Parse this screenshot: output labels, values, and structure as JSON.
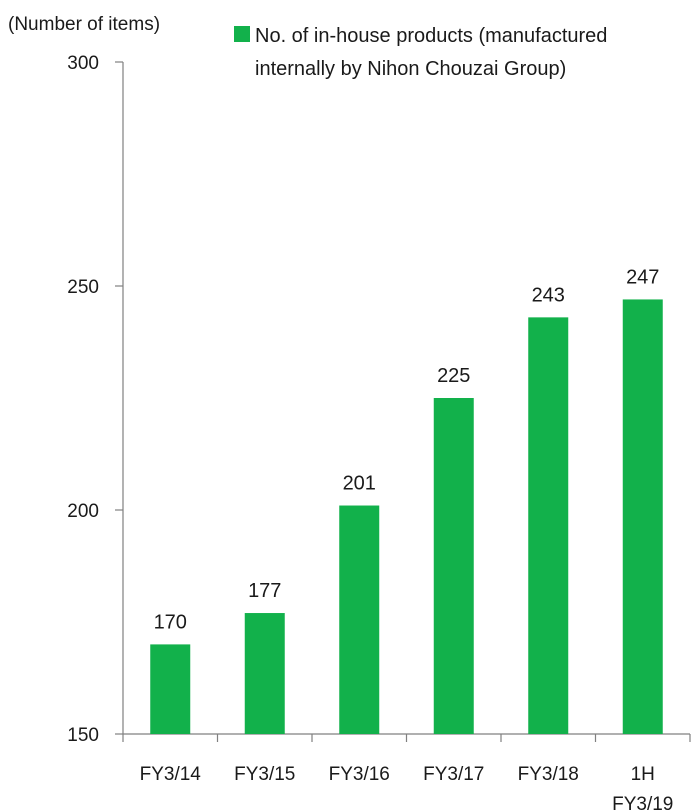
{
  "chart_data": {
    "type": "bar",
    "title": "",
    "unit_label": "(Number of items)",
    "xlabel": "",
    "ylabel": "",
    "ylim": [
      150,
      300
    ],
    "yticks": [
      150,
      200,
      250,
      300
    ],
    "grid": false,
    "legend": {
      "position": "top",
      "color": "#12b14b",
      "lines": [
        "No. of in-house products (manufactured",
        "internally by Nihon Chouzai Group)"
      ]
    },
    "categories": [
      [
        "FY3/14"
      ],
      [
        "FY3/15"
      ],
      [
        "FY3/16"
      ],
      [
        "FY3/17"
      ],
      [
        "FY3/18"
      ],
      [
        "1H",
        "FY3/19"
      ]
    ],
    "series": [
      {
        "name": "No. of in-house products (manufactured internally by Nihon Chouzai Group)",
        "color": "#12b14b",
        "values": [
          170,
          177,
          201,
          225,
          243,
          247
        ]
      }
    ]
  }
}
